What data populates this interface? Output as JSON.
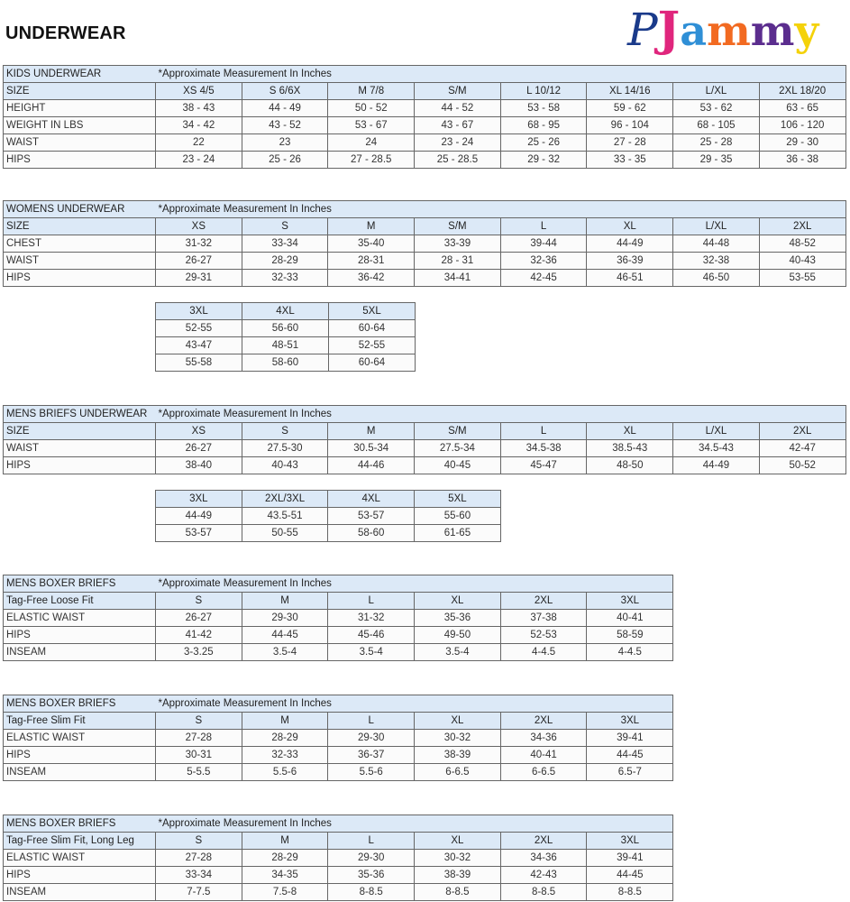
{
  "page_title": "UNDERWEAR",
  "logo": {
    "text": "PJammy",
    "colors": [
      "#1a3a8a",
      "#e0267d",
      "#2f8fd6",
      "#f26a21",
      "#5b2d8e",
      "#f4d20a"
    ]
  },
  "note": "*Approximate Measurement In Inches",
  "tables": [
    {
      "name": "kids-underwear",
      "caption": "KIDS UNDERWEAR",
      "header_label": "SIZE",
      "columns": [
        "XS 4/5",
        "S 6/6X",
        "M 7/8",
        "S/M",
        "L 10/12",
        "XL 14/16",
        "L/XL",
        "2XL 18/20"
      ],
      "rows": [
        {
          "label": "HEIGHT",
          "values": [
            "38 - 43",
            "44 - 49",
            "50 - 52",
            "44 - 52",
            "53 - 58",
            "59 - 62",
            "53 - 62",
            "63 - 65"
          ]
        },
        {
          "label": "WEIGHT IN LBS",
          "values": [
            "34 - 42",
            "43 - 52",
            "53 - 67",
            "43 - 67",
            "68 - 95",
            "96 - 104",
            "68 - 105",
            "106 - 120"
          ]
        },
        {
          "label": "WAIST",
          "values": [
            "22",
            "23",
            "24",
            "23 - 24",
            "25 - 26",
            "27 - 28",
            "25 - 28",
            "29 - 30"
          ]
        },
        {
          "label": "HIPS",
          "values": [
            "23 - 24",
            "25 - 26",
            "27 - 28.5",
            "25 - 28.5",
            "29 - 32",
            "33 - 35",
            "29 - 35",
            "36 - 38"
          ]
        }
      ]
    },
    {
      "name": "womens-underwear",
      "caption": "WOMENS UNDERWEAR",
      "header_label": "SIZE",
      "columns": [
        "XS",
        "S",
        "M",
        "S/M",
        "L",
        "XL",
        "L/XL",
        "2XL"
      ],
      "rows": [
        {
          "label": "CHEST",
          "values": [
            "31-32",
            "33-34",
            "35-40",
            "33-39",
            "39-44",
            "44-49",
            "44-48",
            "48-52"
          ]
        },
        {
          "label": "WAIST",
          "values": [
            "26-27",
            "28-29",
            "28-31",
            "28 - 31",
            "32-36",
            "36-39",
            "32-38",
            "40-43"
          ]
        },
        {
          "label": "HIPS",
          "values": [
            "29-31",
            "32-33",
            "36-42",
            "34-41",
            "42-45",
            "46-51",
            "46-50",
            "53-55"
          ]
        }
      ]
    },
    {
      "name": "womens-underwear-extended",
      "columns": [
        "3XL",
        "4XL",
        "5XL"
      ],
      "rows": [
        {
          "values": [
            "52-55",
            "56-60",
            "60-64"
          ]
        },
        {
          "values": [
            "43-47",
            "48-51",
            "52-55"
          ]
        },
        {
          "values": [
            "55-58",
            "58-60",
            "60-64"
          ]
        }
      ]
    },
    {
      "name": "mens-briefs-underwear",
      "caption": "MENS BRIEFS UNDERWEAR",
      "header_label": "SIZE",
      "columns": [
        "XS",
        "S",
        "M",
        "S/M",
        "L",
        "XL",
        "L/XL",
        "2XL"
      ],
      "rows": [
        {
          "label": "WAIST",
          "values": [
            "26-27",
            "27.5-30",
            "30.5-34",
            "27.5-34",
            "34.5-38",
            "38.5-43",
            "34.5-43",
            "42-47"
          ]
        },
        {
          "label": "HIPS",
          "values": [
            "38-40",
            "40-43",
            "44-46",
            "40-45",
            "45-47",
            "48-50",
            "44-49",
            "50-52"
          ]
        }
      ]
    },
    {
      "name": "mens-briefs-extended",
      "columns": [
        "3XL",
        "2XL/3XL",
        "4XL",
        "5XL"
      ],
      "rows": [
        {
          "values": [
            "44-49",
            "43.5-51",
            "53-57",
            "55-60"
          ]
        },
        {
          "values": [
            "53-57",
            "50-55",
            "58-60",
            "61-65"
          ]
        }
      ]
    },
    {
      "name": "mens-boxer-briefs-loose-fit",
      "caption": "MENS BOXER BRIEFS",
      "header_label": "Tag-Free Loose Fit",
      "columns": [
        "S",
        "M",
        "L",
        "XL",
        "2XL",
        "3XL"
      ],
      "rows": [
        {
          "label": "ELASTIC WAIST",
          "values": [
            "26-27",
            "29-30",
            "31-32",
            "35-36",
            "37-38",
            "40-41"
          ]
        },
        {
          "label": "HIPS",
          "values": [
            "41-42",
            "44-45",
            "45-46",
            "49-50",
            "52-53",
            "58-59"
          ]
        },
        {
          "label": "INSEAM",
          "values": [
            "3-3.25",
            "3.5-4",
            "3.5-4",
            "3.5-4",
            "4-4.5",
            "4-4.5"
          ]
        }
      ]
    },
    {
      "name": "mens-boxer-briefs-slim-fit",
      "caption": "MENS BOXER BRIEFS",
      "header_label": "Tag-Free Slim Fit",
      "columns": [
        "S",
        "M",
        "L",
        "XL",
        "2XL",
        "3XL"
      ],
      "rows": [
        {
          "label": "ELASTIC WAIST",
          "values": [
            "27-28",
            "28-29",
            "29-30",
            "30-32",
            "34-36",
            "39-41"
          ]
        },
        {
          "label": "HIPS",
          "values": [
            "30-31",
            "32-33",
            "36-37",
            "38-39",
            "40-41",
            "44-45"
          ]
        },
        {
          "label": "INSEAM",
          "values": [
            "5-5.5",
            "5.5-6",
            "5.5-6",
            "6-6.5",
            "6-6.5",
            "6.5-7"
          ]
        }
      ]
    },
    {
      "name": "mens-boxer-briefs-slim-fit-long-leg",
      "caption": "MENS BOXER BRIEFS",
      "header_label": "Tag-Free Slim Fit, Long Leg",
      "columns": [
        "S",
        "M",
        "L",
        "XL",
        "2XL",
        "3XL"
      ],
      "rows": [
        {
          "label": "ELASTIC WAIST",
          "values": [
            "27-28",
            "28-29",
            "29-30",
            "30-32",
            "34-36",
            "39-41"
          ]
        },
        {
          "label": "HIPS",
          "values": [
            "33-34",
            "34-35",
            "35-36",
            "38-39",
            "42-43",
            "44-45"
          ]
        },
        {
          "label": "INSEAM",
          "values": [
            "7-7.5",
            "7.5-8",
            "8-8.5",
            "8-8.5",
            "8-8.5",
            "8-8.5"
          ]
        }
      ]
    }
  ]
}
